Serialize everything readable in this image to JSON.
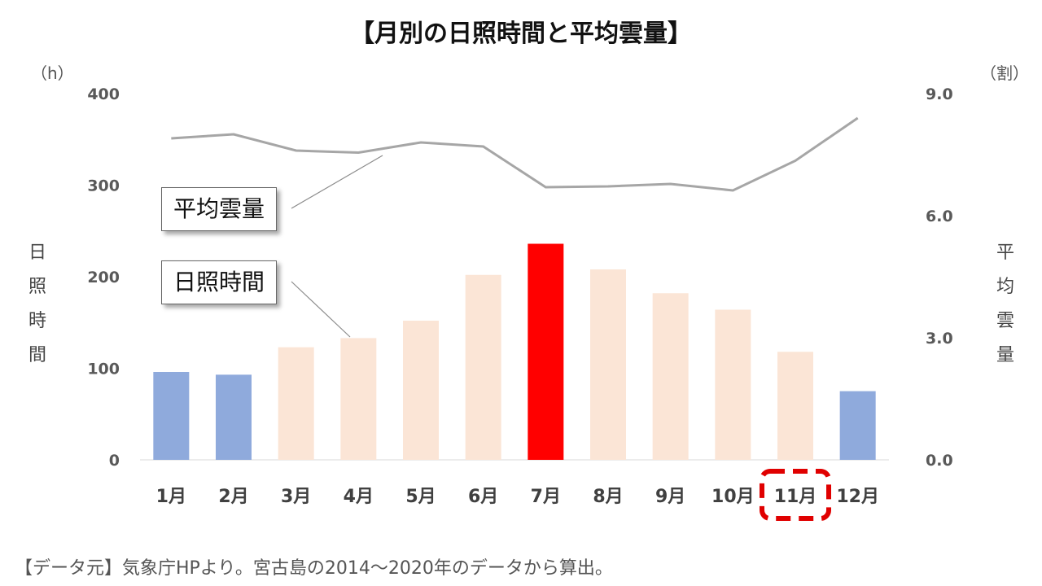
{
  "title": "【月別の日照時間と平均雲量】",
  "left_unit": "（h）",
  "right_unit": "（割）",
  "left_axis_label": [
    "日",
    "照",
    "時",
    "間"
  ],
  "right_axis_label": [
    "平",
    "均",
    "雲",
    "量"
  ],
  "callouts": {
    "cloud": "平均雲量",
    "sunshine": "日照時間"
  },
  "source": "【データ元】気象庁HPより。宮古島の2014～2020年のデータから算出。",
  "colors": {
    "low": "#8faadc",
    "mid": "#fbe5d6",
    "peak": "#ff0000",
    "line": "#a6a6a6",
    "highlight_box": "#e00000"
  },
  "chart_data": {
    "type": "bar",
    "categories": [
      "1月",
      "2月",
      "3月",
      "4月",
      "5月",
      "6月",
      "7月",
      "8月",
      "9月",
      "10月",
      "11月",
      "12月"
    ],
    "series": [
      {
        "name": "日照時間",
        "type": "bar",
        "axis": "left",
        "values": [
          96,
          93,
          123,
          133,
          152,
          202,
          236,
          208,
          182,
          164,
          118,
          75
        ],
        "color_class": [
          "low",
          "low",
          "mid",
          "mid",
          "mid",
          "mid",
          "peak",
          "mid",
          "mid",
          "mid",
          "mid",
          "low"
        ]
      },
      {
        "name": "平均雲量",
        "type": "line",
        "axis": "right",
        "values": [
          7.9,
          8.0,
          7.6,
          7.55,
          7.8,
          7.7,
          6.7,
          6.72,
          6.78,
          6.62,
          7.35,
          8.4
        ]
      }
    ],
    "y_left": {
      "min": 0,
      "max": 400,
      "ticks": [
        "0",
        "100",
        "200",
        "300",
        "400"
      ]
    },
    "y_right": {
      "min": 0,
      "max": 9,
      "ticks": [
        "0.0",
        "3.0",
        "6.0",
        "9.0"
      ]
    },
    "highlight_category": "11月",
    "grid": false
  }
}
